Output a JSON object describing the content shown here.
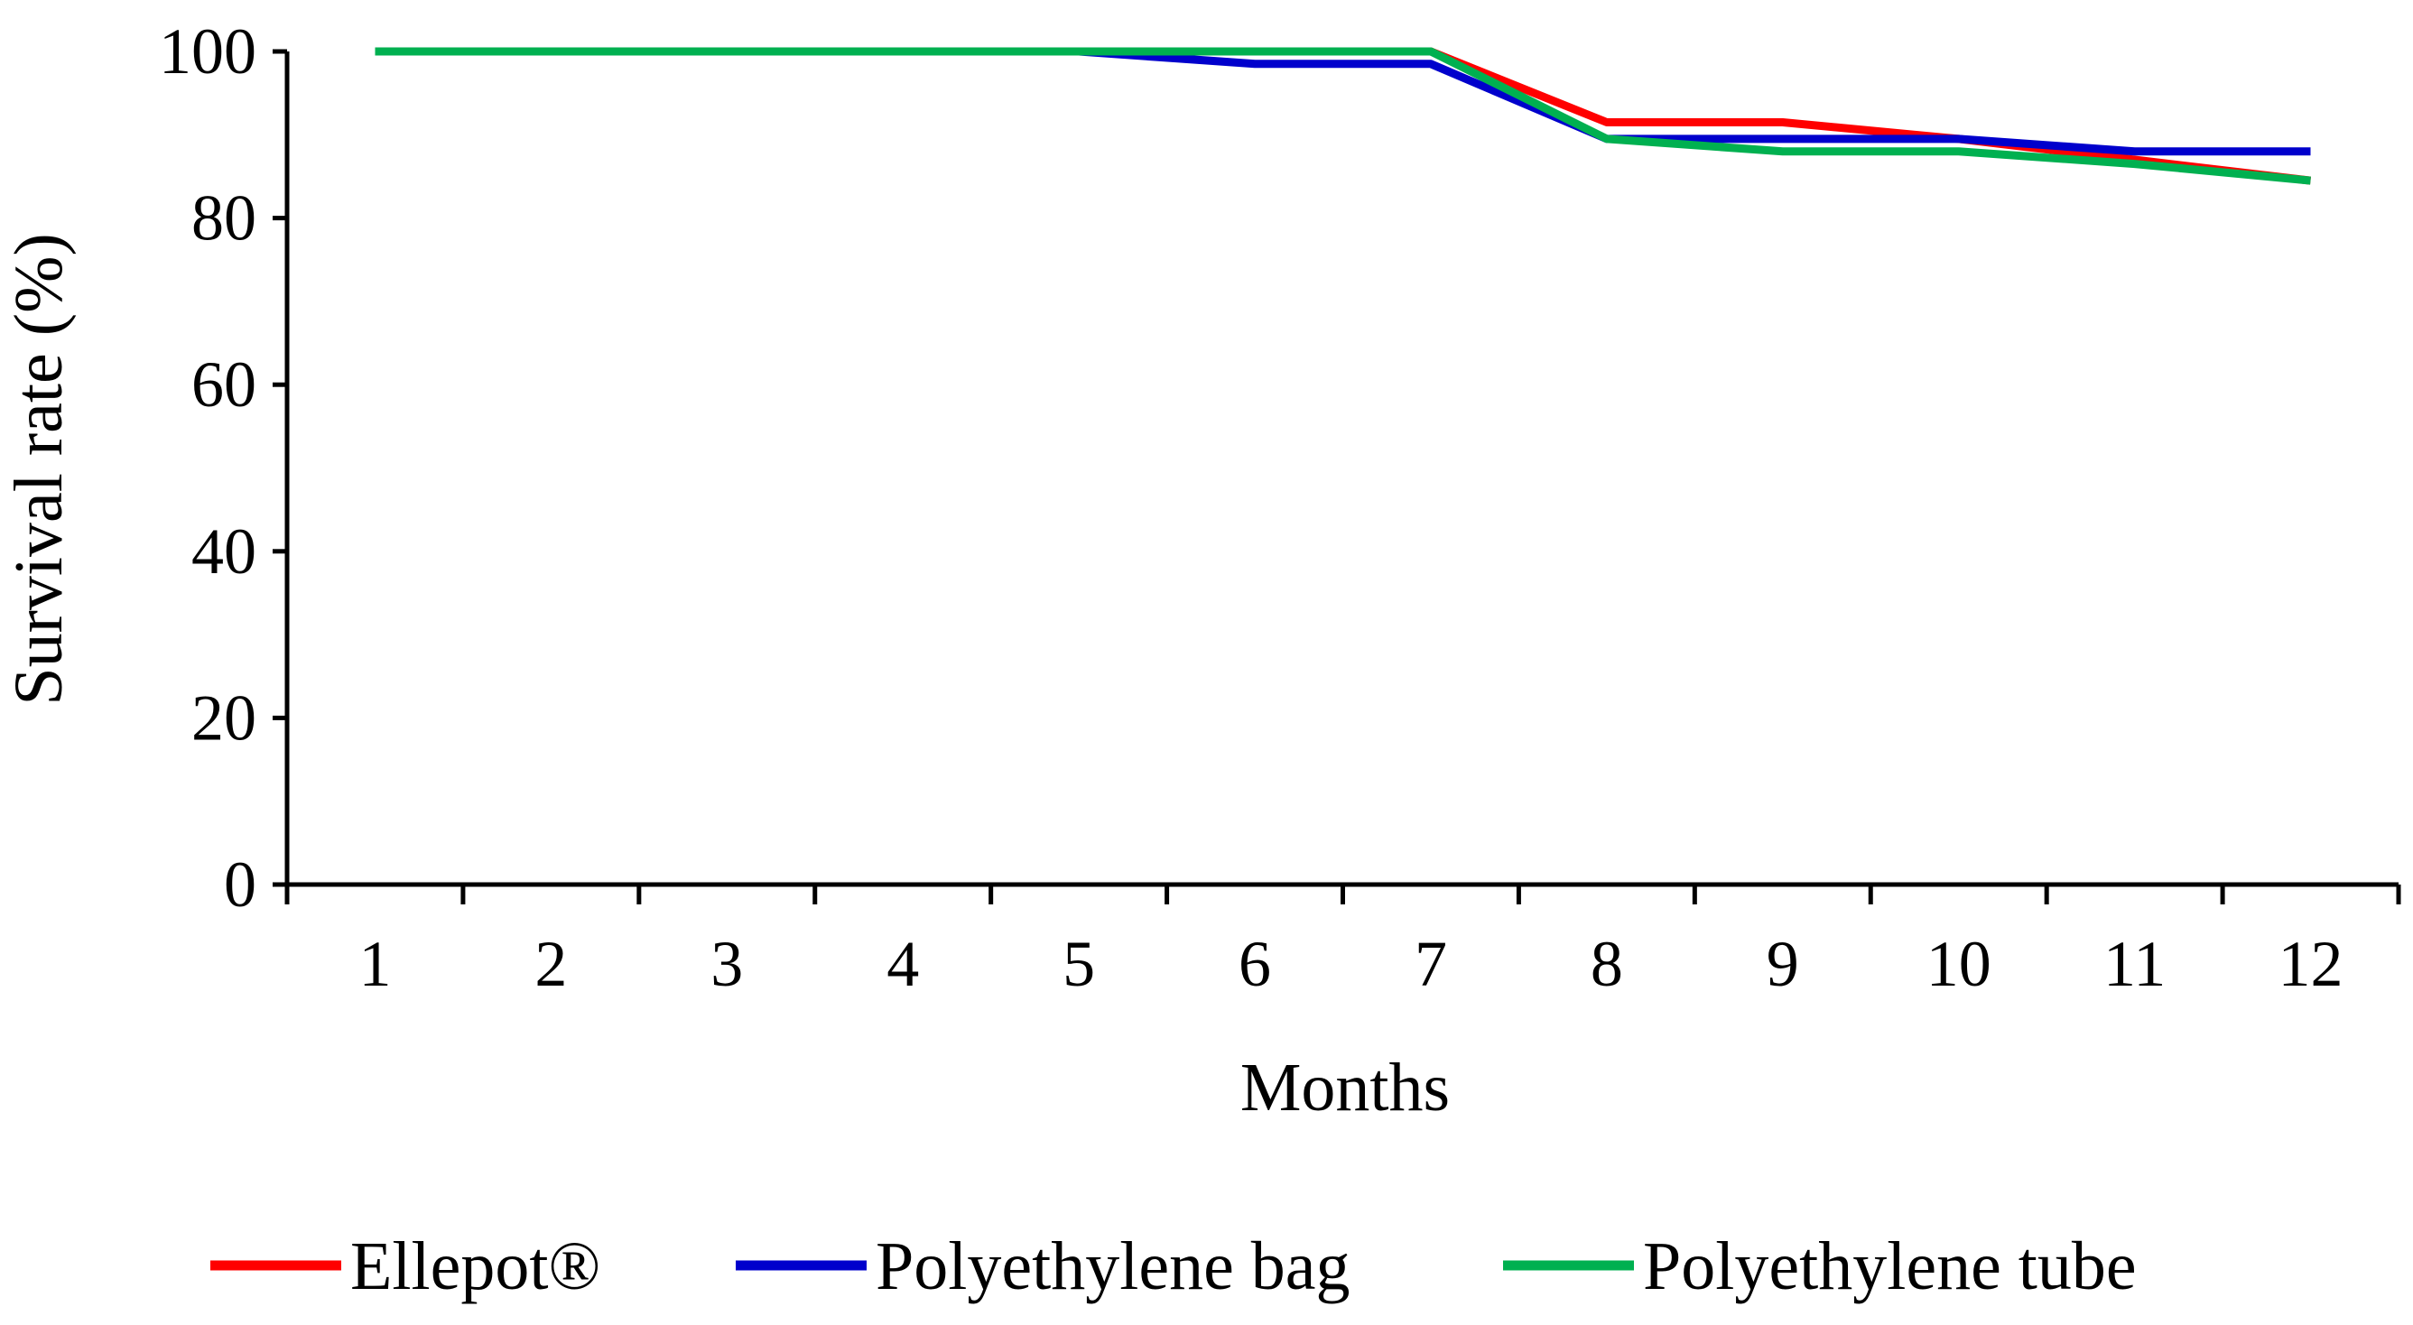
{
  "chart_data": {
    "type": "line",
    "title": "",
    "xlabel": "Months",
    "ylabel": "Survival rate (%)",
    "categories": [
      "1",
      "2",
      "3",
      "4",
      "5",
      "6",
      "7",
      "8",
      "9",
      "10",
      "11",
      "12"
    ],
    "yticks": [
      "0",
      "20",
      "40",
      "60",
      "80",
      "100"
    ],
    "ylim": [
      0,
      100
    ],
    "grid": false,
    "legend_position": "bottom",
    "series": [
      {
        "name": "Ellepot®",
        "color": "#ff0000",
        "values": [
          100,
          100,
          100,
          100,
          100,
          100,
          100,
          91.5,
          91.5,
          89.5,
          87,
          84.5
        ]
      },
      {
        "name": "Polyethylene bag",
        "color": "#0000cc",
        "values": [
          100,
          100,
          100,
          100,
          100,
          98.5,
          98.5,
          89.5,
          89.5,
          89.5,
          88,
          88
        ]
      },
      {
        "name": "Polyethylene tube",
        "color": "#00b050",
        "values": [
          100,
          100,
          100,
          100,
          100,
          100,
          100,
          89.5,
          88,
          88,
          86.5,
          84.5
        ]
      }
    ]
  }
}
